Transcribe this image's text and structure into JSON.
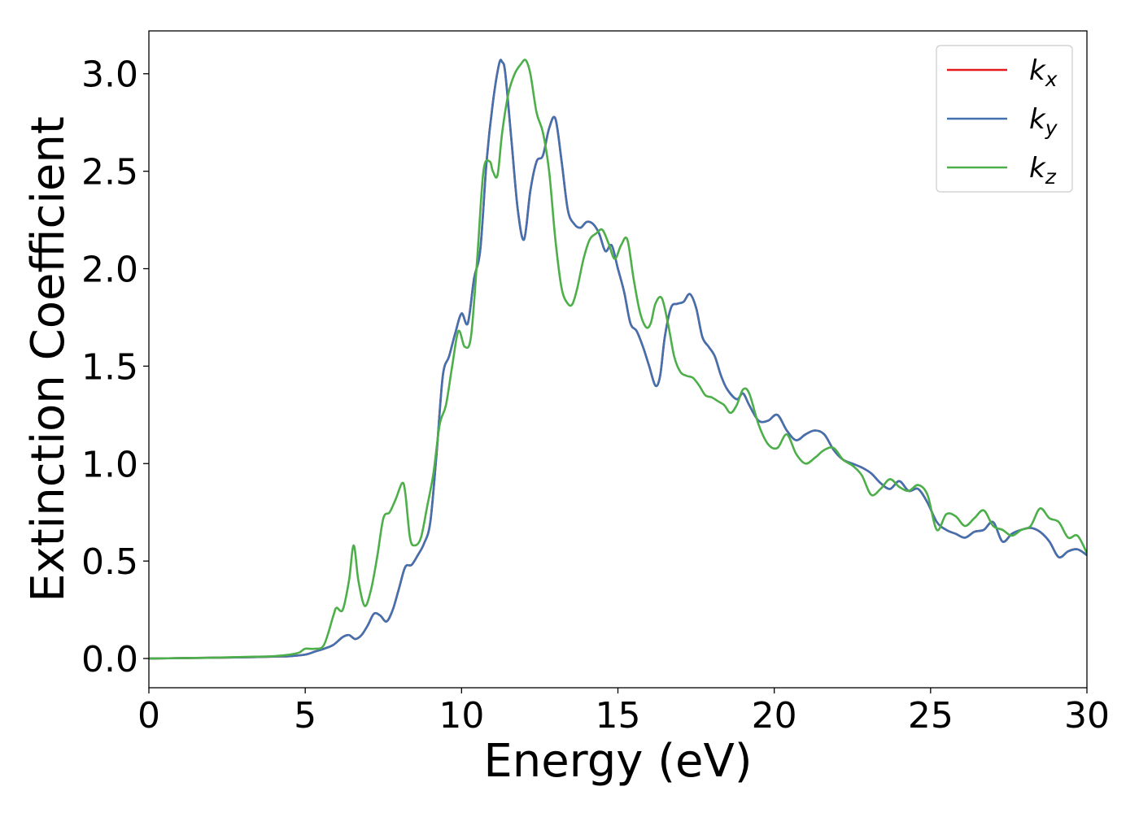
{
  "chart_data": {
    "type": "line",
    "title": "",
    "xlabel": "Energy (eV)",
    "ylabel": "Extinction Coefficient",
    "xlim": [
      0,
      30
    ],
    "ylim": [
      -0.15,
      3.22
    ],
    "xticks": [
      0,
      5,
      10,
      15,
      20,
      25,
      30
    ],
    "xtick_labels": [
      "0",
      "5",
      "10",
      "15",
      "20",
      "25",
      "30"
    ],
    "yticks": [
      0.0,
      0.5,
      1.0,
      1.5,
      2.0,
      2.5,
      3.0
    ],
    "ytick_labels": [
      "0.0",
      "0.5",
      "1.0",
      "1.5",
      "2.0",
      "2.5",
      "3.0"
    ],
    "grid": false,
    "legend_position": "top-right",
    "series": [
      {
        "name": "kx",
        "label_base": "k",
        "label_sub": "x",
        "color": "#e41a1c",
        "x": [
          0,
          1,
          2,
          3,
          4,
          4.5,
          5,
          5.3,
          5.6,
          5.9,
          6.2,
          6.4,
          6.6,
          6.8,
          7.0,
          7.2,
          7.4,
          7.6,
          7.8,
          8.0,
          8.2,
          8.4,
          8.6,
          8.8,
          9.0,
          9.2,
          9.4,
          9.6,
          9.8,
          10.0,
          10.2,
          10.4,
          10.6,
          10.8,
          11.0,
          11.2,
          11.3,
          11.4,
          11.6,
          11.8,
          12.0,
          12.2,
          12.4,
          12.6,
          12.8,
          13.0,
          13.2,
          13.4,
          13.6,
          13.8,
          14.0,
          14.2,
          14.4,
          14.6,
          14.8,
          15.0,
          15.2,
          15.4,
          15.6,
          15.8,
          16.0,
          16.2,
          16.35,
          16.5,
          16.7,
          16.9,
          17.1,
          17.3,
          17.5,
          17.7,
          17.9,
          18.1,
          18.3,
          18.5,
          18.8,
          19.0,
          19.2,
          19.5,
          19.8,
          20.1,
          20.4,
          20.7,
          21.0,
          21.3,
          21.6,
          21.9,
          22.2,
          22.5,
          22.8,
          23.1,
          23.4,
          23.7,
          24.0,
          24.3,
          24.6,
          24.9,
          25.2,
          25.5,
          25.8,
          26.1,
          26.4,
          26.7,
          27.0,
          27.3,
          27.6,
          27.9,
          28.2,
          28.5,
          28.8,
          29.1,
          29.4,
          29.7,
          30.0
        ],
        "y": [
          0.0,
          0.002,
          0.004,
          0.006,
          0.01,
          0.012,
          0.02,
          0.035,
          0.05,
          0.07,
          0.11,
          0.12,
          0.1,
          0.12,
          0.17,
          0.23,
          0.22,
          0.19,
          0.25,
          0.36,
          0.47,
          0.48,
          0.53,
          0.59,
          0.7,
          1.05,
          1.45,
          1.55,
          1.67,
          1.77,
          1.72,
          1.95,
          2.1,
          2.55,
          2.85,
          3.05,
          3.06,
          3.0,
          2.65,
          2.3,
          2.15,
          2.4,
          2.55,
          2.58,
          2.72,
          2.77,
          2.55,
          2.3,
          2.23,
          2.21,
          2.24,
          2.23,
          2.18,
          2.09,
          2.12,
          2.0,
          1.88,
          1.72,
          1.68,
          1.6,
          1.5,
          1.4,
          1.45,
          1.65,
          1.8,
          1.82,
          1.83,
          1.87,
          1.8,
          1.65,
          1.6,
          1.55,
          1.45,
          1.38,
          1.33,
          1.36,
          1.3,
          1.22,
          1.22,
          1.25,
          1.17,
          1.12,
          1.15,
          1.17,
          1.15,
          1.07,
          1.02,
          1.0,
          0.98,
          0.95,
          0.9,
          0.87,
          0.91,
          0.86,
          0.87,
          0.8,
          0.7,
          0.66,
          0.64,
          0.62,
          0.65,
          0.66,
          0.7,
          0.6,
          0.64,
          0.66,
          0.67,
          0.65,
          0.6,
          0.52,
          0.55,
          0.56,
          0.53
        ]
      },
      {
        "name": "ky",
        "label_base": "k",
        "label_sub": "y",
        "color": "#4271b0",
        "x": [
          0,
          1,
          2,
          3,
          4,
          4.5,
          5,
          5.3,
          5.6,
          5.9,
          6.2,
          6.4,
          6.6,
          6.8,
          7.0,
          7.2,
          7.4,
          7.6,
          7.8,
          8.0,
          8.2,
          8.4,
          8.6,
          8.8,
          9.0,
          9.2,
          9.4,
          9.6,
          9.8,
          10.0,
          10.2,
          10.4,
          10.6,
          10.8,
          11.0,
          11.2,
          11.3,
          11.4,
          11.6,
          11.8,
          12.0,
          12.2,
          12.4,
          12.6,
          12.8,
          13.0,
          13.2,
          13.4,
          13.6,
          13.8,
          14.0,
          14.2,
          14.4,
          14.6,
          14.8,
          15.0,
          15.2,
          15.4,
          15.6,
          15.8,
          16.0,
          16.2,
          16.35,
          16.5,
          16.7,
          16.9,
          17.1,
          17.3,
          17.5,
          17.7,
          17.9,
          18.1,
          18.3,
          18.5,
          18.8,
          19.0,
          19.2,
          19.5,
          19.8,
          20.1,
          20.4,
          20.7,
          21.0,
          21.3,
          21.6,
          21.9,
          22.2,
          22.5,
          22.8,
          23.1,
          23.4,
          23.7,
          24.0,
          24.3,
          24.6,
          24.9,
          25.2,
          25.5,
          25.8,
          26.1,
          26.4,
          26.7,
          27.0,
          27.3,
          27.6,
          27.9,
          28.2,
          28.5,
          28.8,
          29.1,
          29.4,
          29.7,
          30.0
        ],
        "y": [
          0.0,
          0.002,
          0.004,
          0.006,
          0.01,
          0.012,
          0.02,
          0.035,
          0.05,
          0.07,
          0.11,
          0.12,
          0.1,
          0.12,
          0.17,
          0.23,
          0.22,
          0.19,
          0.25,
          0.36,
          0.47,
          0.48,
          0.53,
          0.59,
          0.7,
          1.05,
          1.45,
          1.55,
          1.67,
          1.77,
          1.72,
          1.95,
          2.1,
          2.55,
          2.85,
          3.05,
          3.06,
          3.0,
          2.65,
          2.3,
          2.15,
          2.4,
          2.55,
          2.58,
          2.72,
          2.77,
          2.55,
          2.3,
          2.23,
          2.21,
          2.24,
          2.23,
          2.18,
          2.09,
          2.12,
          2.0,
          1.88,
          1.72,
          1.68,
          1.6,
          1.5,
          1.4,
          1.45,
          1.65,
          1.8,
          1.82,
          1.83,
          1.87,
          1.8,
          1.65,
          1.6,
          1.55,
          1.45,
          1.38,
          1.33,
          1.36,
          1.3,
          1.22,
          1.22,
          1.25,
          1.17,
          1.12,
          1.15,
          1.17,
          1.15,
          1.07,
          1.02,
          1.0,
          0.98,
          0.95,
          0.9,
          0.87,
          0.91,
          0.86,
          0.87,
          0.8,
          0.7,
          0.66,
          0.64,
          0.62,
          0.65,
          0.66,
          0.7,
          0.6,
          0.64,
          0.66,
          0.67,
          0.65,
          0.6,
          0.52,
          0.55,
          0.56,
          0.53
        ]
      },
      {
        "name": "kz",
        "label_base": "k",
        "label_sub": "z",
        "color": "#4daf4a",
        "x": [
          0,
          1,
          2,
          3,
          4,
          4.5,
          4.8,
          5.0,
          5.3,
          5.6,
          5.9,
          6.0,
          6.2,
          6.4,
          6.55,
          6.7,
          6.9,
          7.1,
          7.3,
          7.5,
          7.7,
          7.9,
          8.1,
          8.2,
          8.35,
          8.5,
          8.7,
          8.9,
          9.1,
          9.3,
          9.5,
          9.7,
          9.9,
          10.1,
          10.3,
          10.5,
          10.7,
          10.9,
          11.0,
          11.15,
          11.3,
          11.5,
          11.7,
          11.9,
          12.05,
          12.2,
          12.4,
          12.6,
          12.8,
          13.0,
          13.2,
          13.4,
          13.55,
          13.7,
          13.9,
          14.1,
          14.3,
          14.5,
          14.7,
          14.9,
          15.1,
          15.3,
          15.5,
          15.7,
          15.9,
          16.05,
          16.2,
          16.4,
          16.6,
          16.8,
          17.0,
          17.2,
          17.4,
          17.6,
          17.8,
          18.0,
          18.2,
          18.4,
          18.6,
          18.8,
          19.0,
          19.2,
          19.5,
          19.8,
          20.1,
          20.4,
          20.7,
          21.0,
          21.3,
          21.6,
          21.9,
          22.2,
          22.5,
          22.8,
          23.1,
          23.4,
          23.7,
          24.0,
          24.3,
          24.6,
          24.9,
          25.2,
          25.5,
          25.8,
          26.1,
          26.4,
          26.7,
          27.0,
          27.3,
          27.6,
          27.9,
          28.2,
          28.5,
          28.8,
          29.1,
          29.4,
          29.7,
          30.0
        ],
        "y": [
          0.0,
          0.002,
          0.004,
          0.008,
          0.012,
          0.02,
          0.03,
          0.05,
          0.05,
          0.07,
          0.22,
          0.26,
          0.25,
          0.4,
          0.58,
          0.4,
          0.27,
          0.35,
          0.52,
          0.72,
          0.75,
          0.82,
          0.9,
          0.85,
          0.62,
          0.58,
          0.62,
          0.78,
          0.95,
          1.2,
          1.3,
          1.5,
          1.68,
          1.6,
          1.65,
          2.05,
          2.5,
          2.55,
          2.5,
          2.48,
          2.7,
          2.9,
          3.0,
          3.05,
          3.07,
          3.0,
          2.8,
          2.7,
          2.5,
          2.15,
          1.9,
          1.82,
          1.82,
          1.9,
          2.05,
          2.15,
          2.18,
          2.2,
          2.13,
          2.05,
          2.12,
          2.15,
          1.95,
          1.78,
          1.7,
          1.72,
          1.82,
          1.85,
          1.72,
          1.55,
          1.47,
          1.45,
          1.44,
          1.4,
          1.35,
          1.34,
          1.32,
          1.3,
          1.26,
          1.3,
          1.38,
          1.36,
          1.2,
          1.1,
          1.08,
          1.15,
          1.05,
          1.0,
          1.03,
          1.07,
          1.08,
          1.02,
          0.99,
          0.94,
          0.84,
          0.87,
          0.92,
          0.88,
          0.86,
          0.89,
          0.84,
          0.66,
          0.74,
          0.73,
          0.68,
          0.72,
          0.76,
          0.68,
          0.66,
          0.63,
          0.66,
          0.68,
          0.77,
          0.72,
          0.7,
          0.62,
          0.63,
          0.54
        ]
      }
    ]
  }
}
